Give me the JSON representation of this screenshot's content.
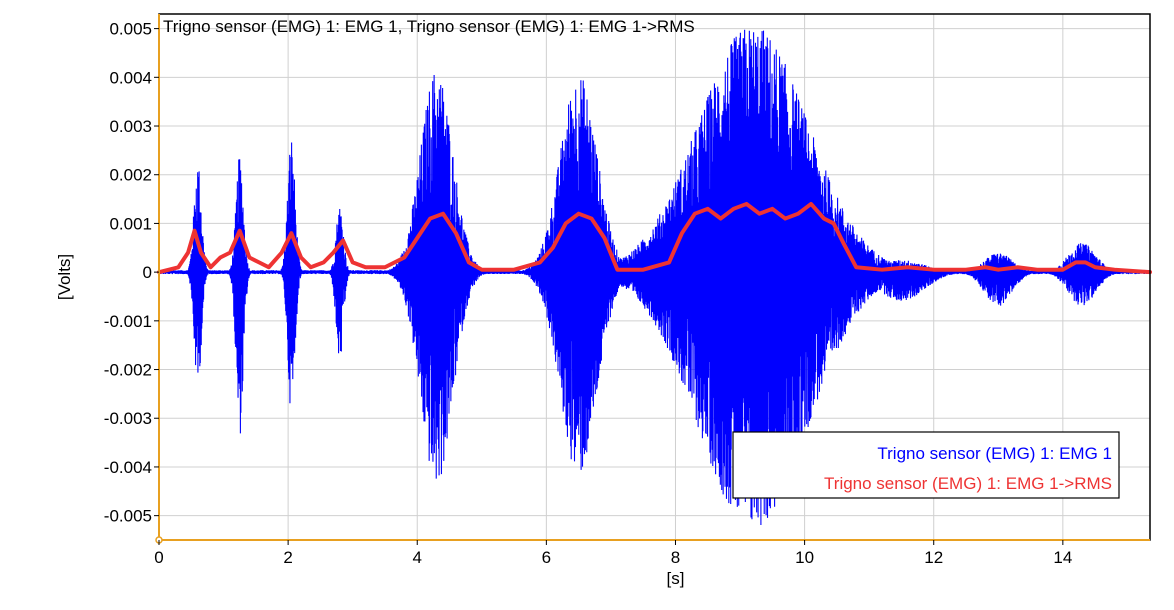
{
  "chart_data": {
    "type": "line",
    "title": "Trigno sensor (EMG) 1: EMG 1, Trigno sensor (EMG) 1: EMG 1->RMS",
    "xlabel": "[s]",
    "ylabel": "[Volts]",
    "xlim": [
      0,
      15.35
    ],
    "ylim": [
      -0.0055,
      0.0053
    ],
    "xticks": [
      0,
      2,
      4,
      6,
      8,
      10,
      12,
      14
    ],
    "xtick_labels": [
      "0",
      "2",
      "4",
      "6",
      "8",
      "10",
      "12",
      "14"
    ],
    "yticks": [
      0.005,
      0.004,
      0.003,
      0.002,
      0.001,
      0,
      -0.001,
      -0.002,
      -0.003,
      -0.004,
      -0.005
    ],
    "ytick_labels": [
      "0.005",
      "0.004",
      "0.003",
      "0.002",
      "0.001",
      "0",
      "-0.001",
      "-0.002",
      "-0.003",
      "-0.004",
      "-0.005"
    ],
    "grid": true,
    "legend_position": "bottom-right",
    "series": [
      {
        "name": "Trigno sensor (EMG) 1: EMG 1",
        "color": "#0000ff",
        "kind": "raw signal envelope",
        "bursts": [
          {
            "center": 0.6,
            "width": 0.08,
            "amp_pos": 0.0023,
            "amp_neg": 0.0024
          },
          {
            "center": 1.25,
            "width": 0.08,
            "amp_pos": 0.0024,
            "amp_neg": 0.0034
          },
          {
            "center": 2.05,
            "width": 0.08,
            "amp_pos": 0.0028,
            "amp_neg": 0.0029
          },
          {
            "center": 2.8,
            "width": 0.08,
            "amp_pos": 0.0014,
            "amp_neg": 0.0019
          },
          {
            "center": 4.3,
            "width": 0.35,
            "amp_pos": 0.0042,
            "amp_neg": 0.0044
          },
          {
            "center": 6.5,
            "width": 0.4,
            "amp_pos": 0.0041,
            "amp_neg": 0.0042
          },
          {
            "center": 9.2,
            "width": 1.2,
            "amp_pos": 0.0051,
            "amp_neg": 0.0053
          },
          {
            "center": 11.5,
            "width": 0.5,
            "amp_pos": 0.00025,
            "amp_neg": 0.0006
          },
          {
            "center": 13.0,
            "width": 0.3,
            "amp_pos": 0.0004,
            "amp_neg": 0.0007
          },
          {
            "center": 14.3,
            "width": 0.3,
            "amp_pos": 0.0006,
            "amp_neg": 0.0007
          }
        ]
      },
      {
        "name": "Trigno sensor (EMG) 1: EMG 1->RMS",
        "color": "#ee3333",
        "kind": "rms",
        "x": [
          0,
          0.3,
          0.45,
          0.55,
          0.65,
          0.8,
          0.95,
          1.1,
          1.25,
          1.4,
          1.55,
          1.7,
          1.9,
          2.05,
          2.2,
          2.35,
          2.55,
          2.7,
          2.85,
          3.0,
          3.2,
          3.5,
          3.8,
          4.0,
          4.2,
          4.4,
          4.6,
          4.8,
          5.0,
          5.5,
          5.9,
          6.1,
          6.3,
          6.5,
          6.7,
          6.9,
          7.1,
          7.5,
          7.9,
          8.1,
          8.3,
          8.5,
          8.7,
          8.9,
          9.1,
          9.3,
          9.5,
          9.7,
          9.9,
          10.1,
          10.3,
          10.45,
          10.6,
          10.8,
          11.2,
          11.6,
          12.0,
          12.5,
          12.8,
          13.0,
          13.3,
          13.6,
          14.0,
          14.2,
          14.35,
          14.5,
          14.8,
          15.35
        ],
        "y": [
          0,
          0.0001,
          0.0004,
          0.00085,
          0.0004,
          0.0001,
          0.0003,
          0.0004,
          0.00085,
          0.0003,
          0.0002,
          0.0001,
          0.0004,
          0.0008,
          0.0003,
          0.0001,
          0.0002,
          0.0004,
          0.00065,
          0.0002,
          0.0001,
          0.0001,
          0.0003,
          0.0007,
          0.0011,
          0.0012,
          0.0008,
          0.0002,
          5e-05,
          5e-05,
          0.0002,
          0.0005,
          0.001,
          0.0012,
          0.0011,
          0.0007,
          5e-05,
          5e-05,
          0.0002,
          0.0008,
          0.0012,
          0.0013,
          0.0011,
          0.0013,
          0.0014,
          0.0012,
          0.0013,
          0.0011,
          0.0012,
          0.0014,
          0.0011,
          0.001,
          0.0006,
          0.0001,
          5e-05,
          0.0001,
          5e-05,
          5e-05,
          0.0001,
          5e-05,
          0.0001,
          5e-05,
          5e-05,
          0.0002,
          0.0002,
          0.0001,
          5e-05,
          0
        ]
      }
    ]
  }
}
